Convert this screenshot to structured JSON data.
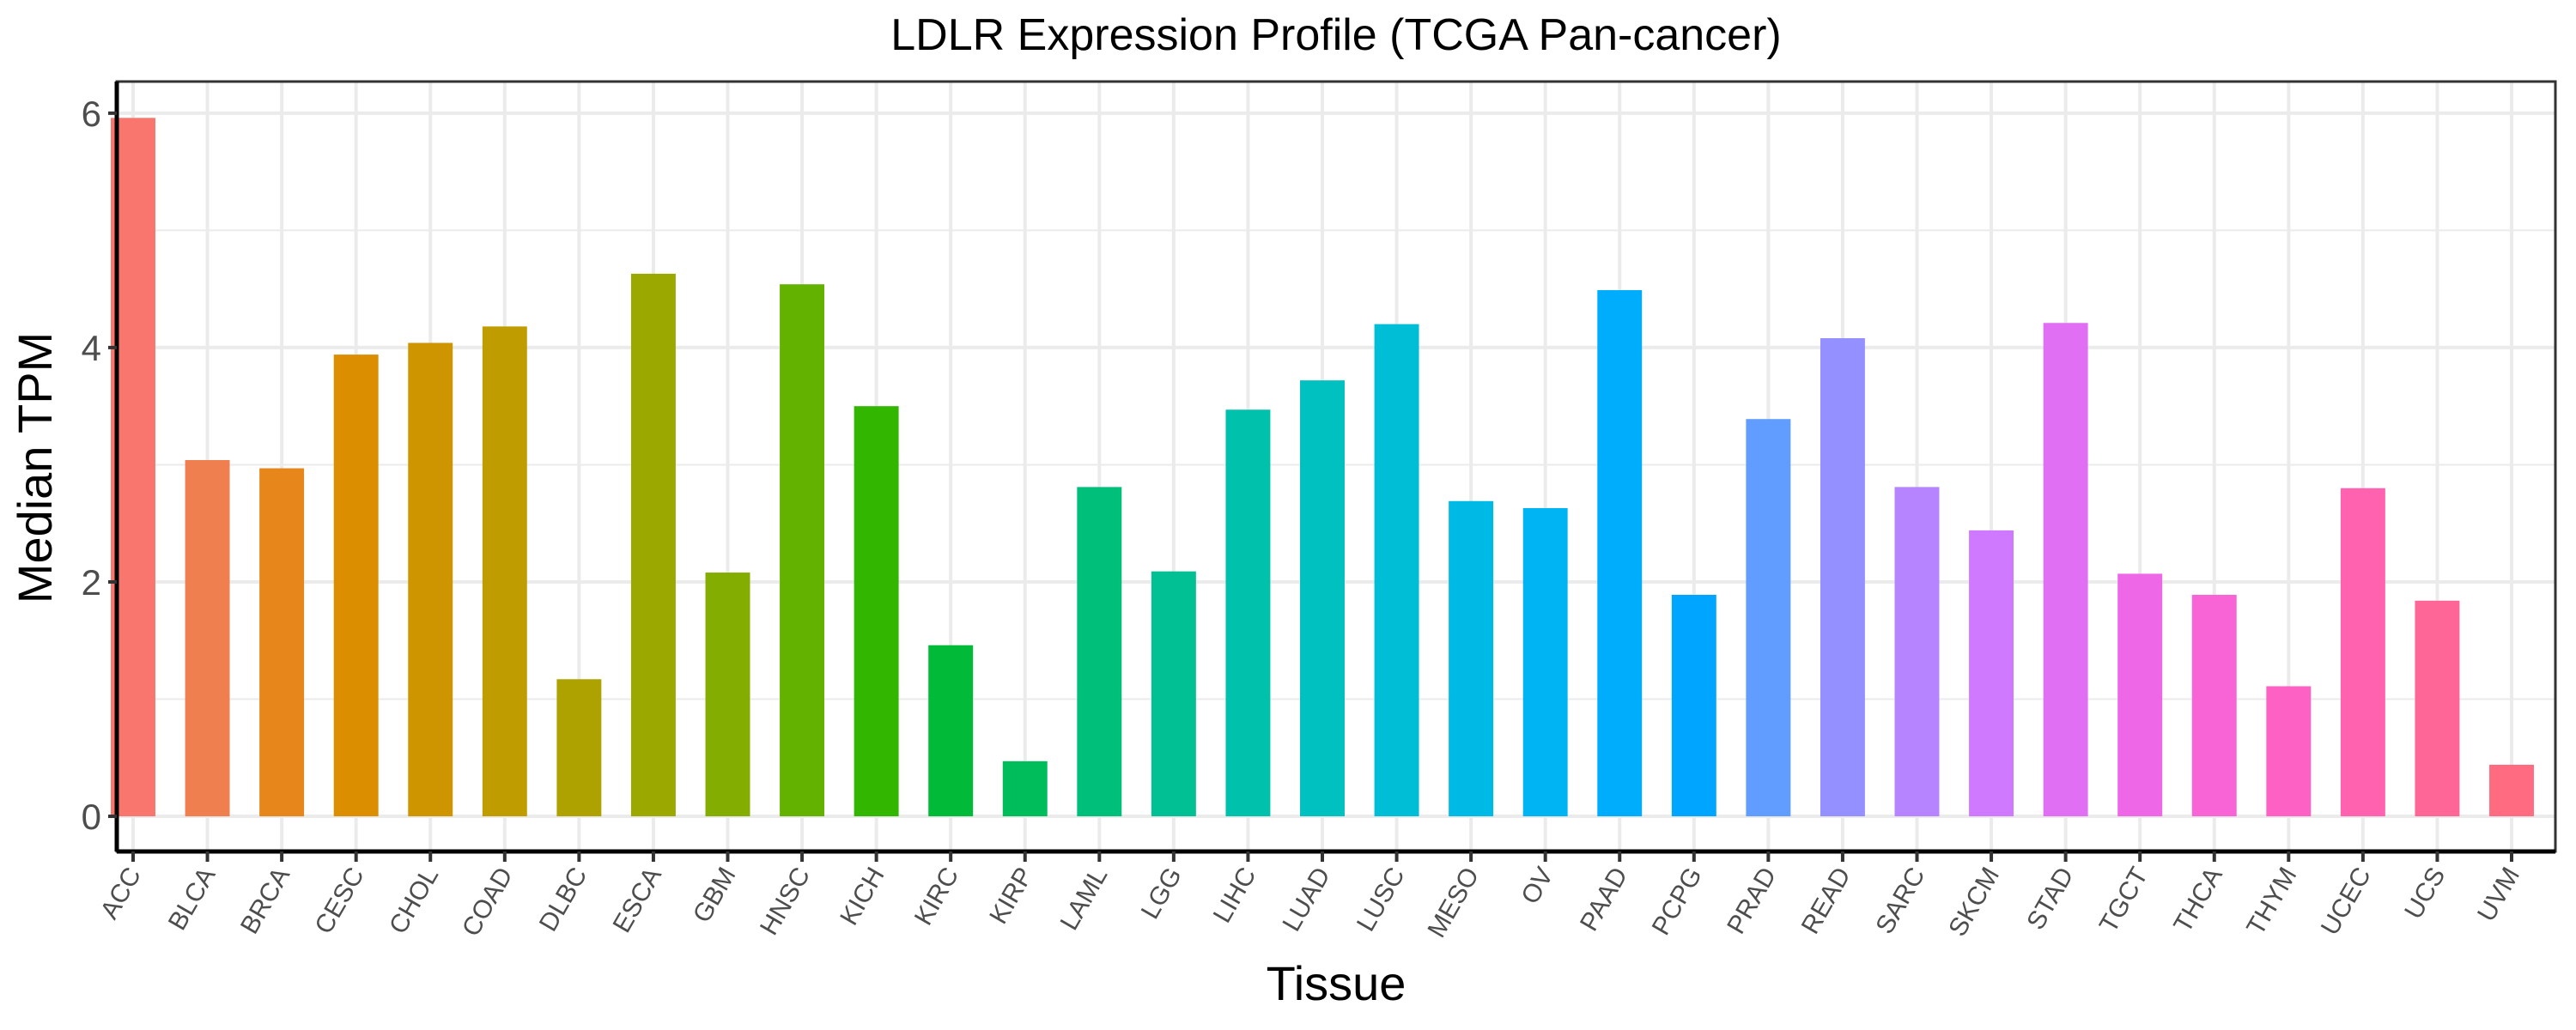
{
  "chart_data": {
    "type": "bar",
    "title": "LDLR Expression Profile (TCGA Pan-cancer)",
    "xlabel": "Tissue",
    "ylabel": "Median TPM",
    "ylim": [
      -0.3,
      6.27
    ],
    "yticks": [
      0,
      2,
      4,
      6
    ],
    "grid": true,
    "legend": "none",
    "categories": [
      "ACC",
      "BLCA",
      "BRCA",
      "CESC",
      "CHOL",
      "COAD",
      "DLBC",
      "ESCA",
      "GBM",
      "HNSC",
      "KICH",
      "KIRC",
      "KIRP",
      "LAML",
      "LGG",
      "LIHC",
      "LUAD",
      "LUSC",
      "MESO",
      "OV",
      "PAAD",
      "PCPG",
      "PRAD",
      "READ",
      "SARC",
      "SKCM",
      "STAD",
      "TGCT",
      "THCA",
      "THYM",
      "UCEC",
      "UCS",
      "UVM"
    ],
    "values": [
      5.96,
      3.04,
      2.97,
      3.94,
      4.04,
      4.18,
      1.17,
      4.63,
      2.08,
      4.54,
      3.5,
      1.46,
      0.47,
      2.81,
      2.09,
      3.47,
      3.72,
      4.2,
      2.69,
      2.63,
      4.49,
      1.89,
      3.39,
      4.08,
      2.81,
      2.44,
      4.21,
      2.07,
      1.89,
      1.11,
      2.8,
      1.84,
      0.44
    ],
    "colors": [
      "#F8766D",
      "#F07F4F",
      "#E7861B",
      "#DB8E00",
      "#CE9500",
      "#BF9C00",
      "#AEA200",
      "#9AA800",
      "#83AD00",
      "#64B200",
      "#33B600",
      "#00BA38",
      "#00BD5C",
      "#00BF7A",
      "#00C094",
      "#00C1AB",
      "#00C0C0",
      "#00BED5",
      "#00BAE6",
      "#00B4F4",
      "#00ACFC",
      "#00A5FF",
      "#619CFF",
      "#9590FF",
      "#B684FF",
      "#CE79FF",
      "#E06FF4",
      "#EE67E7",
      "#F863D6",
      "#FD61C4",
      "#FF62AF",
      "#FF6698",
      "#FF6C82"
    ]
  }
}
